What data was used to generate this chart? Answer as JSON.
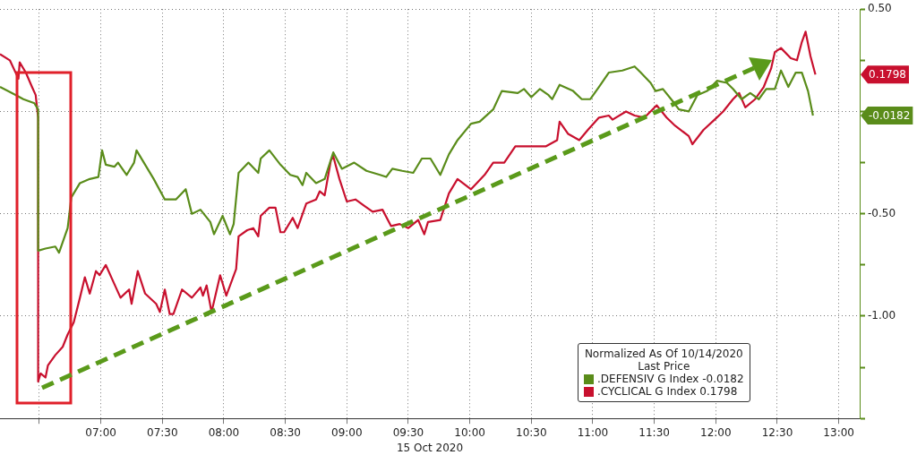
{
  "chart_data": {
    "type": "line",
    "xlabel": "15 Oct 2020",
    "legend_title": "Normalized As Of 10/14/2020\nLast Price",
    "legend": "bottom right",
    "grid": true,
    "marker": "none",
    "line_style": "solid",
    "xlim": [
      6.18,
      13.17
    ],
    "xticks": [
      {
        "value": 6.5,
        "label": null
      },
      {
        "value": 7,
        "label": "07:00"
      },
      {
        "value": 7.5,
        "label": "07:30"
      },
      {
        "value": 8,
        "label": "08:00"
      },
      {
        "value": 8.5,
        "label": "08:30"
      },
      {
        "value": 9,
        "label": "09:00"
      },
      {
        "value": 9.5,
        "label": "09:30"
      },
      {
        "value": 10,
        "label": "10:00"
      },
      {
        "value": 10.5,
        "label": "10:30"
      },
      {
        "value": 11,
        "label": "11:00"
      },
      {
        "value": 11.5,
        "label": "11:30"
      },
      {
        "value": 12,
        "label": "12:00"
      },
      {
        "value": 12.5,
        "label": "12:30"
      },
      {
        "value": 13,
        "label": "13:00"
      }
    ],
    "ylim": [
      -1.5,
      0.5
    ],
    "yticks": [
      {
        "value": 0.5,
        "label": "0.50"
      },
      {
        "value": 0.25,
        "label": null
      },
      {
        "value": 0,
        "label": null
      },
      {
        "value": -0.25,
        "label": null
      },
      {
        "value": -0.5,
        "label": "-0.50"
      },
      {
        "value": -0.75,
        "label": null
      },
      {
        "value": -1,
        "label": "-1.00"
      },
      {
        "value": -1.25,
        "label": null
      },
      {
        "value": -1.5,
        "label": null
      }
    ],
    "annotations": [
      "-0.0182",
      "0.1798"
    ],
    "series": [
      {
        "name": ".DEFENSIV G Index -0.0182",
        "color": "#5a8c1a",
        "x": [
          6.18,
          6.31,
          6.37,
          6.46,
          6.49,
          6.49,
          6.55,
          6.63,
          6.66,
          6.73,
          6.76,
          6.83,
          6.91,
          6.98,
          7.01,
          7.04,
          7.11,
          7.14,
          7.21,
          7.27,
          7.29,
          7.36,
          7.43,
          7.52,
          7.61,
          7.69,
          7.74,
          7.81,
          7.89,
          7.92,
          7.99,
          8.05,
          8.08,
          8.12,
          8.2,
          8.28,
          8.3,
          8.37,
          8.46,
          8.54,
          8.6,
          8.64,
          8.67,
          8.75,
          8.82,
          8.89,
          8.96,
          9.06,
          9.16,
          9.27,
          9.32,
          9.37,
          9.45,
          9.54,
          9.61,
          9.68,
          9.76,
          9.83,
          9.9,
          10.01,
          10.08,
          10.19,
          10.26,
          10.39,
          10.44,
          10.5,
          10.57,
          10.64,
          10.67,
          10.73,
          10.84,
          10.91,
          10.98,
          11.05,
          11.13,
          11.24,
          11.34,
          11.39,
          11.47,
          11.51,
          11.57,
          11.65,
          11.7,
          11.78,
          11.85,
          11.93,
          12.01,
          12.09,
          12.14,
          12.21,
          12.28,
          12.35,
          12.41,
          12.48,
          12.53,
          12.59,
          12.65,
          12.7,
          12.75,
          12.79
        ],
        "values": [
          0.12,
          0.08,
          0.06,
          0.04,
          0.01,
          -0.68,
          -0.67,
          -0.66,
          -0.69,
          -0.57,
          -0.42,
          -0.35,
          -0.33,
          -0.32,
          -0.19,
          -0.26,
          -0.27,
          -0.25,
          -0.31,
          -0.25,
          -0.19,
          -0.26,
          -0.33,
          -0.43,
          -0.43,
          -0.38,
          -0.5,
          -0.48,
          -0.54,
          -0.6,
          -0.51,
          -0.6,
          -0.55,
          -0.3,
          -0.25,
          -0.3,
          -0.23,
          -0.19,
          -0.26,
          -0.31,
          -0.32,
          -0.36,
          -0.3,
          -0.35,
          -0.33,
          -0.2,
          -0.28,
          -0.25,
          -0.29,
          -0.31,
          -0.32,
          -0.28,
          -0.29,
          -0.3,
          -0.23,
          -0.23,
          -0.31,
          -0.21,
          -0.14,
          -0.06,
          -0.05,
          0.01,
          0.1,
          0.09,
          0.11,
          0.07,
          0.11,
          0.08,
          0.06,
          0.13,
          0.1,
          0.06,
          0.06,
          0.12,
          0.19,
          0.2,
          0.22,
          0.19,
          0.14,
          0.1,
          0.11,
          0.05,
          0.01,
          0,
          0.08,
          0.1,
          0.15,
          0.14,
          0.11,
          0.06,
          0.09,
          0.06,
          0.11,
          0.11,
          0.2,
          0.12,
          0.19,
          0.19,
          0.1,
          -0.02
        ]
      },
      {
        "name": ".CYCLICAL G Index 0.1798",
        "color": "#c8102e",
        "x": [
          6.18,
          6.26,
          6.33,
          6.34,
          6.39,
          6.44,
          6.47,
          6.49,
          6.49,
          6.51,
          6.55,
          6.57,
          6.63,
          6.69,
          6.73,
          6.78,
          6.83,
          6.87,
          6.91,
          6.96,
          6.99,
          7.04,
          7.1,
          7.16,
          7.23,
          7.25,
          7.3,
          7.36,
          7.45,
          7.48,
          7.52,
          7.56,
          7.59,
          7.66,
          7.74,
          7.81,
          7.83,
          7.86,
          7.9,
          7.97,
          8.02,
          8.1,
          8.12,
          8.19,
          8.24,
          8.28,
          8.3,
          8.37,
          8.42,
          8.46,
          8.49,
          8.56,
          8.6,
          8.67,
          8.75,
          8.78,
          8.82,
          8.87,
          8.89,
          8.94,
          9,
          9.07,
          9.14,
          9.21,
          9.29,
          9.36,
          9.43,
          9.5,
          9.58,
          9.63,
          9.66,
          9.76,
          9.83,
          9.9,
          10.01,
          10.12,
          10.19,
          10.28,
          10.37,
          10.44,
          10.55,
          10.62,
          10.71,
          10.73,
          10.8,
          10.89,
          10.96,
          11.05,
          11.13,
          11.16,
          11.27,
          11.34,
          11.42,
          11.52,
          11.6,
          11.67,
          11.78,
          11.81,
          11.9,
          11.99,
          12.06,
          12.14,
          12.19,
          12.24,
          12.32,
          12.39,
          12.45,
          12.48,
          12.53,
          12.61,
          12.66,
          12.7,
          12.73,
          12.77,
          12.81
        ],
        "values": [
          0.28,
          0.25,
          0.16,
          0.24,
          0.19,
          0.12,
          0.08,
          -0.03,
          -1.32,
          -1.28,
          -1.3,
          -1.24,
          -1.19,
          -1.15,
          -1.09,
          -1.03,
          -0.91,
          -0.81,
          -0.89,
          -0.78,
          -0.8,
          -0.75,
          -0.83,
          -0.91,
          -0.87,
          -0.94,
          -0.78,
          -0.89,
          -0.94,
          -0.98,
          -0.87,
          -0.99,
          -0.99,
          -0.87,
          -0.91,
          -0.86,
          -0.9,
          -0.85,
          -0.98,
          -0.8,
          -0.9,
          -0.77,
          -0.61,
          -0.58,
          -0.57,
          -0.61,
          -0.51,
          -0.47,
          -0.47,
          -0.59,
          -0.59,
          -0.52,
          -0.57,
          -0.45,
          -0.43,
          -0.39,
          -0.41,
          -0.24,
          -0.22,
          -0.33,
          -0.44,
          -0.43,
          -0.46,
          -0.49,
          -0.48,
          -0.56,
          -0.55,
          -0.57,
          -0.53,
          -0.6,
          -0.54,
          -0.53,
          -0.4,
          -0.33,
          -0.38,
          -0.31,
          -0.25,
          -0.25,
          -0.17,
          -0.17,
          -0.17,
          -0.17,
          -0.14,
          -0.05,
          -0.11,
          -0.14,
          -0.09,
          -0.03,
          -0.02,
          -0.04,
          0,
          -0.02,
          -0.03,
          0.03,
          -0.03,
          -0.07,
          -0.12,
          -0.16,
          -0.09,
          -0.04,
          0,
          0.06,
          0.09,
          0.02,
          0.06,
          0.12,
          0.21,
          0.29,
          0.31,
          0.26,
          0.25,
          0.34,
          0.39,
          0.27,
          0.18
        ]
      }
    ]
  }
}
